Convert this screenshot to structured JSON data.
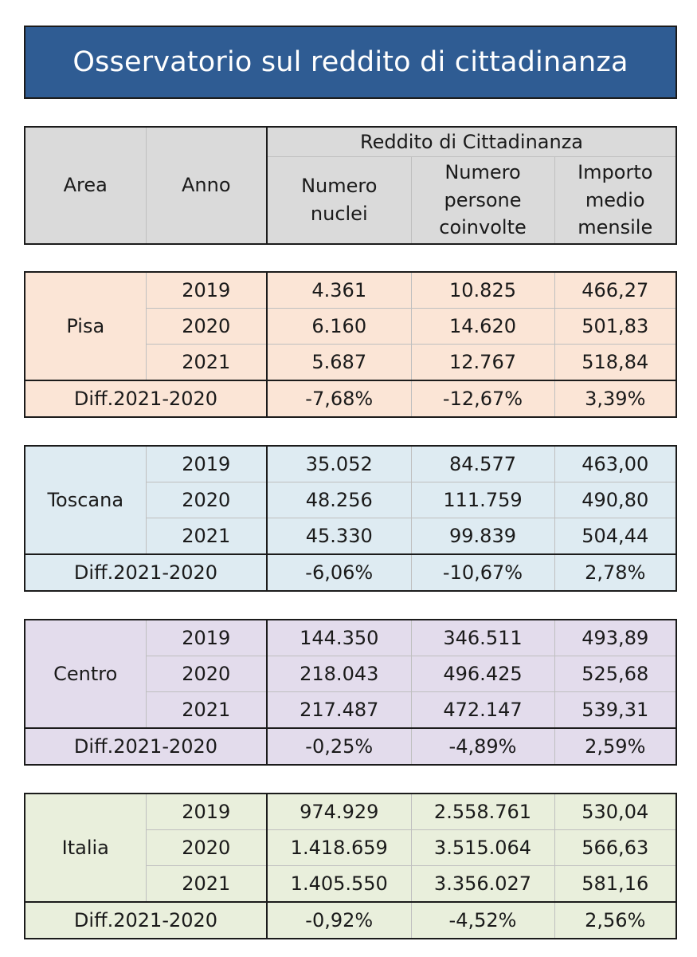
{
  "title": "Osservatorio sul reddito di cittadinanza",
  "header": {
    "area": "Area",
    "anno": "Anno",
    "group": "Reddito di Cittadinanza",
    "col_nuclei": "Numero nuclei",
    "col_persone": "Numero persone coinvolte",
    "col_importo": "Importo medio mensile"
  },
  "regions": [
    {
      "name": "Pisa",
      "color": "#fbe5d6",
      "rows": [
        {
          "year": "2019",
          "nuclei": "4.361",
          "persone": "10.825",
          "importo": "466,27"
        },
        {
          "year": "2020",
          "nuclei": "6.160",
          "persone": "14.620",
          "importo": "501,83"
        },
        {
          "year": "2021",
          "nuclei": "5.687",
          "persone": "12.767",
          "importo": "518,84"
        }
      ],
      "diff": {
        "label": "Diff.2021-2020",
        "nuclei": "-7,68%",
        "persone": "-12,67%",
        "importo": "3,39%"
      }
    },
    {
      "name": "Toscana",
      "color": "#deebf2",
      "rows": [
        {
          "year": "2019",
          "nuclei": "35.052",
          "persone": "84.577",
          "importo": "463,00"
        },
        {
          "year": "2020",
          "nuclei": "48.256",
          "persone": "111.759",
          "importo": "490,80"
        },
        {
          "year": "2021",
          "nuclei": "45.330",
          "persone": "99.839",
          "importo": "504,44"
        }
      ],
      "diff": {
        "label": "Diff.2021-2020",
        "nuclei": "-6,06%",
        "persone": "-10,67%",
        "importo": "2,78%"
      }
    },
    {
      "name": "Centro",
      "color": "#e3dcec",
      "rows": [
        {
          "year": "2019",
          "nuclei": "144.350",
          "persone": "346.511",
          "importo": "493,89"
        },
        {
          "year": "2020",
          "nuclei": "218.043",
          "persone": "496.425",
          "importo": "525,68"
        },
        {
          "year": "2021",
          "nuclei": "217.487",
          "persone": "472.147",
          "importo": "539,31"
        }
      ],
      "diff": {
        "label": "Diff.2021-2020",
        "nuclei": "-0,25%",
        "persone": "-4,89%",
        "importo": "2,59%"
      }
    },
    {
      "name": "Italia",
      "color": "#e9efdc",
      "rows": [
        {
          "year": "2019",
          "nuclei": "974.929",
          "persone": "2.558.761",
          "importo": "530,04"
        },
        {
          "year": "2020",
          "nuclei": "1.418.659",
          "persone": "3.515.064",
          "importo": "566,63"
        },
        {
          "year": "2021",
          "nuclei": "1.405.550",
          "persone": "3.356.027",
          "importo": "581,16"
        }
      ],
      "diff": {
        "label": "Diff.2021-2020",
        "nuclei": "-0,92%",
        "persone": "-4,52%",
        "importo": "2,56%"
      }
    }
  ]
}
